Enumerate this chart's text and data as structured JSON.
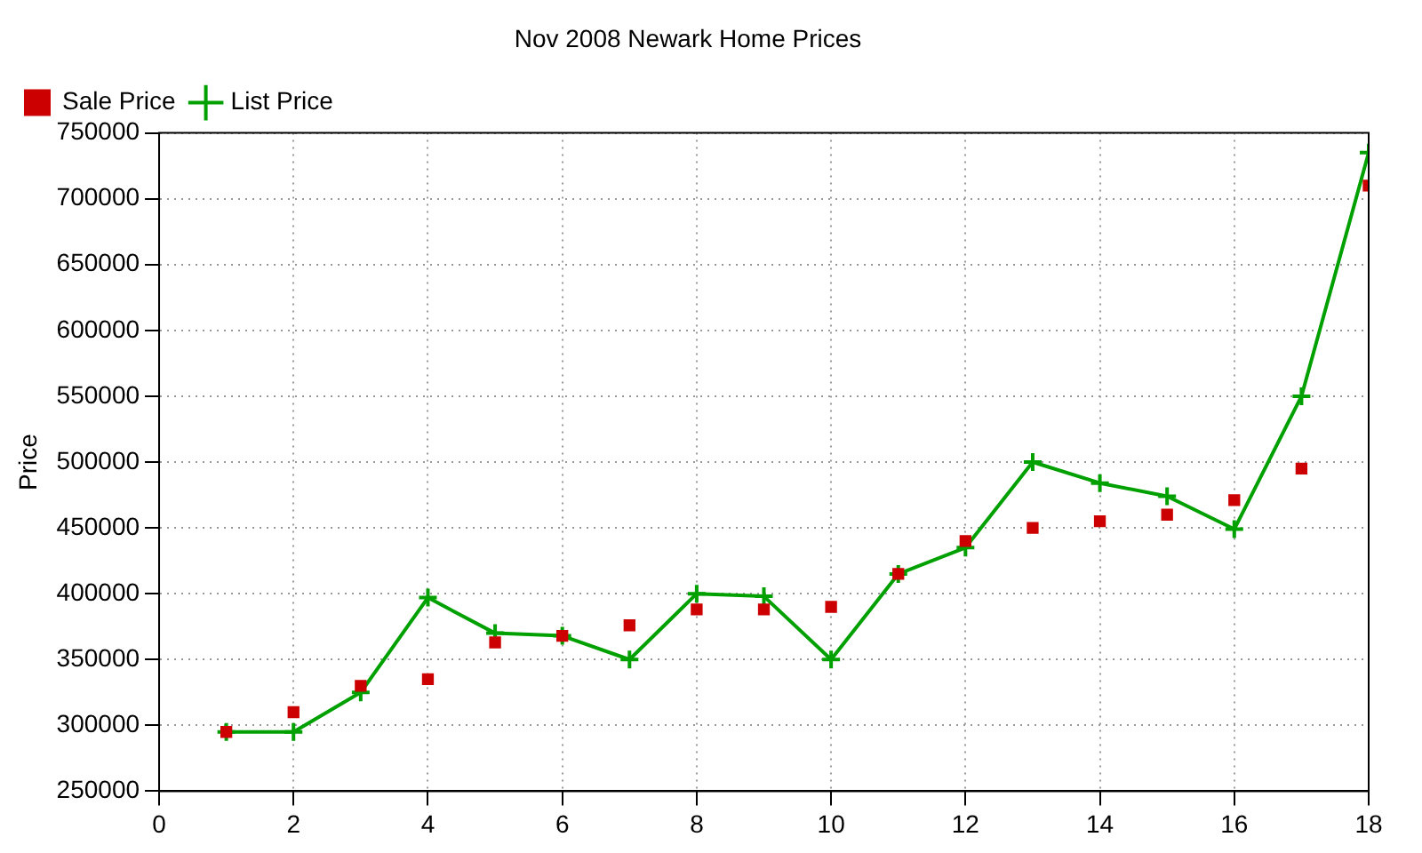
{
  "chart_data": {
    "type": "line",
    "title": "Nov 2008 Newark Home Prices",
    "ylabel": "Price",
    "x": [
      1,
      2,
      3,
      4,
      5,
      6,
      7,
      8,
      9,
      10,
      11,
      12,
      13,
      14,
      15,
      16,
      17,
      18
    ],
    "series": [
      {
        "name": "List Price",
        "type": "line",
        "color": "#00a000",
        "marker": "cross",
        "values": [
          295000,
          295000,
          325000,
          397000,
          370000,
          368000,
          350000,
          400000,
          398000,
          350000,
          415000,
          435000,
          500000,
          484000,
          474000,
          449000,
          550000,
          735000
        ]
      },
      {
        "name": "Sale Price",
        "type": "scatter",
        "color": "#cc0000",
        "marker": "square",
        "values": [
          295000,
          310000,
          330000,
          335000,
          363000,
          368000,
          376000,
          388000,
          388000,
          390000,
          415000,
          440000,
          450000,
          455000,
          460000,
          471000,
          495000,
          710000
        ]
      }
    ],
    "xlim": [
      0,
      18
    ],
    "xticks": [
      0,
      2,
      4,
      6,
      8,
      10,
      12,
      14,
      16,
      18
    ],
    "ylim": [
      250000,
      750000
    ],
    "yticks": [
      250000,
      300000,
      350000,
      400000,
      450000,
      500000,
      550000,
      600000,
      650000,
      700000,
      750000
    ],
    "grid": true,
    "legend": "top left"
  }
}
